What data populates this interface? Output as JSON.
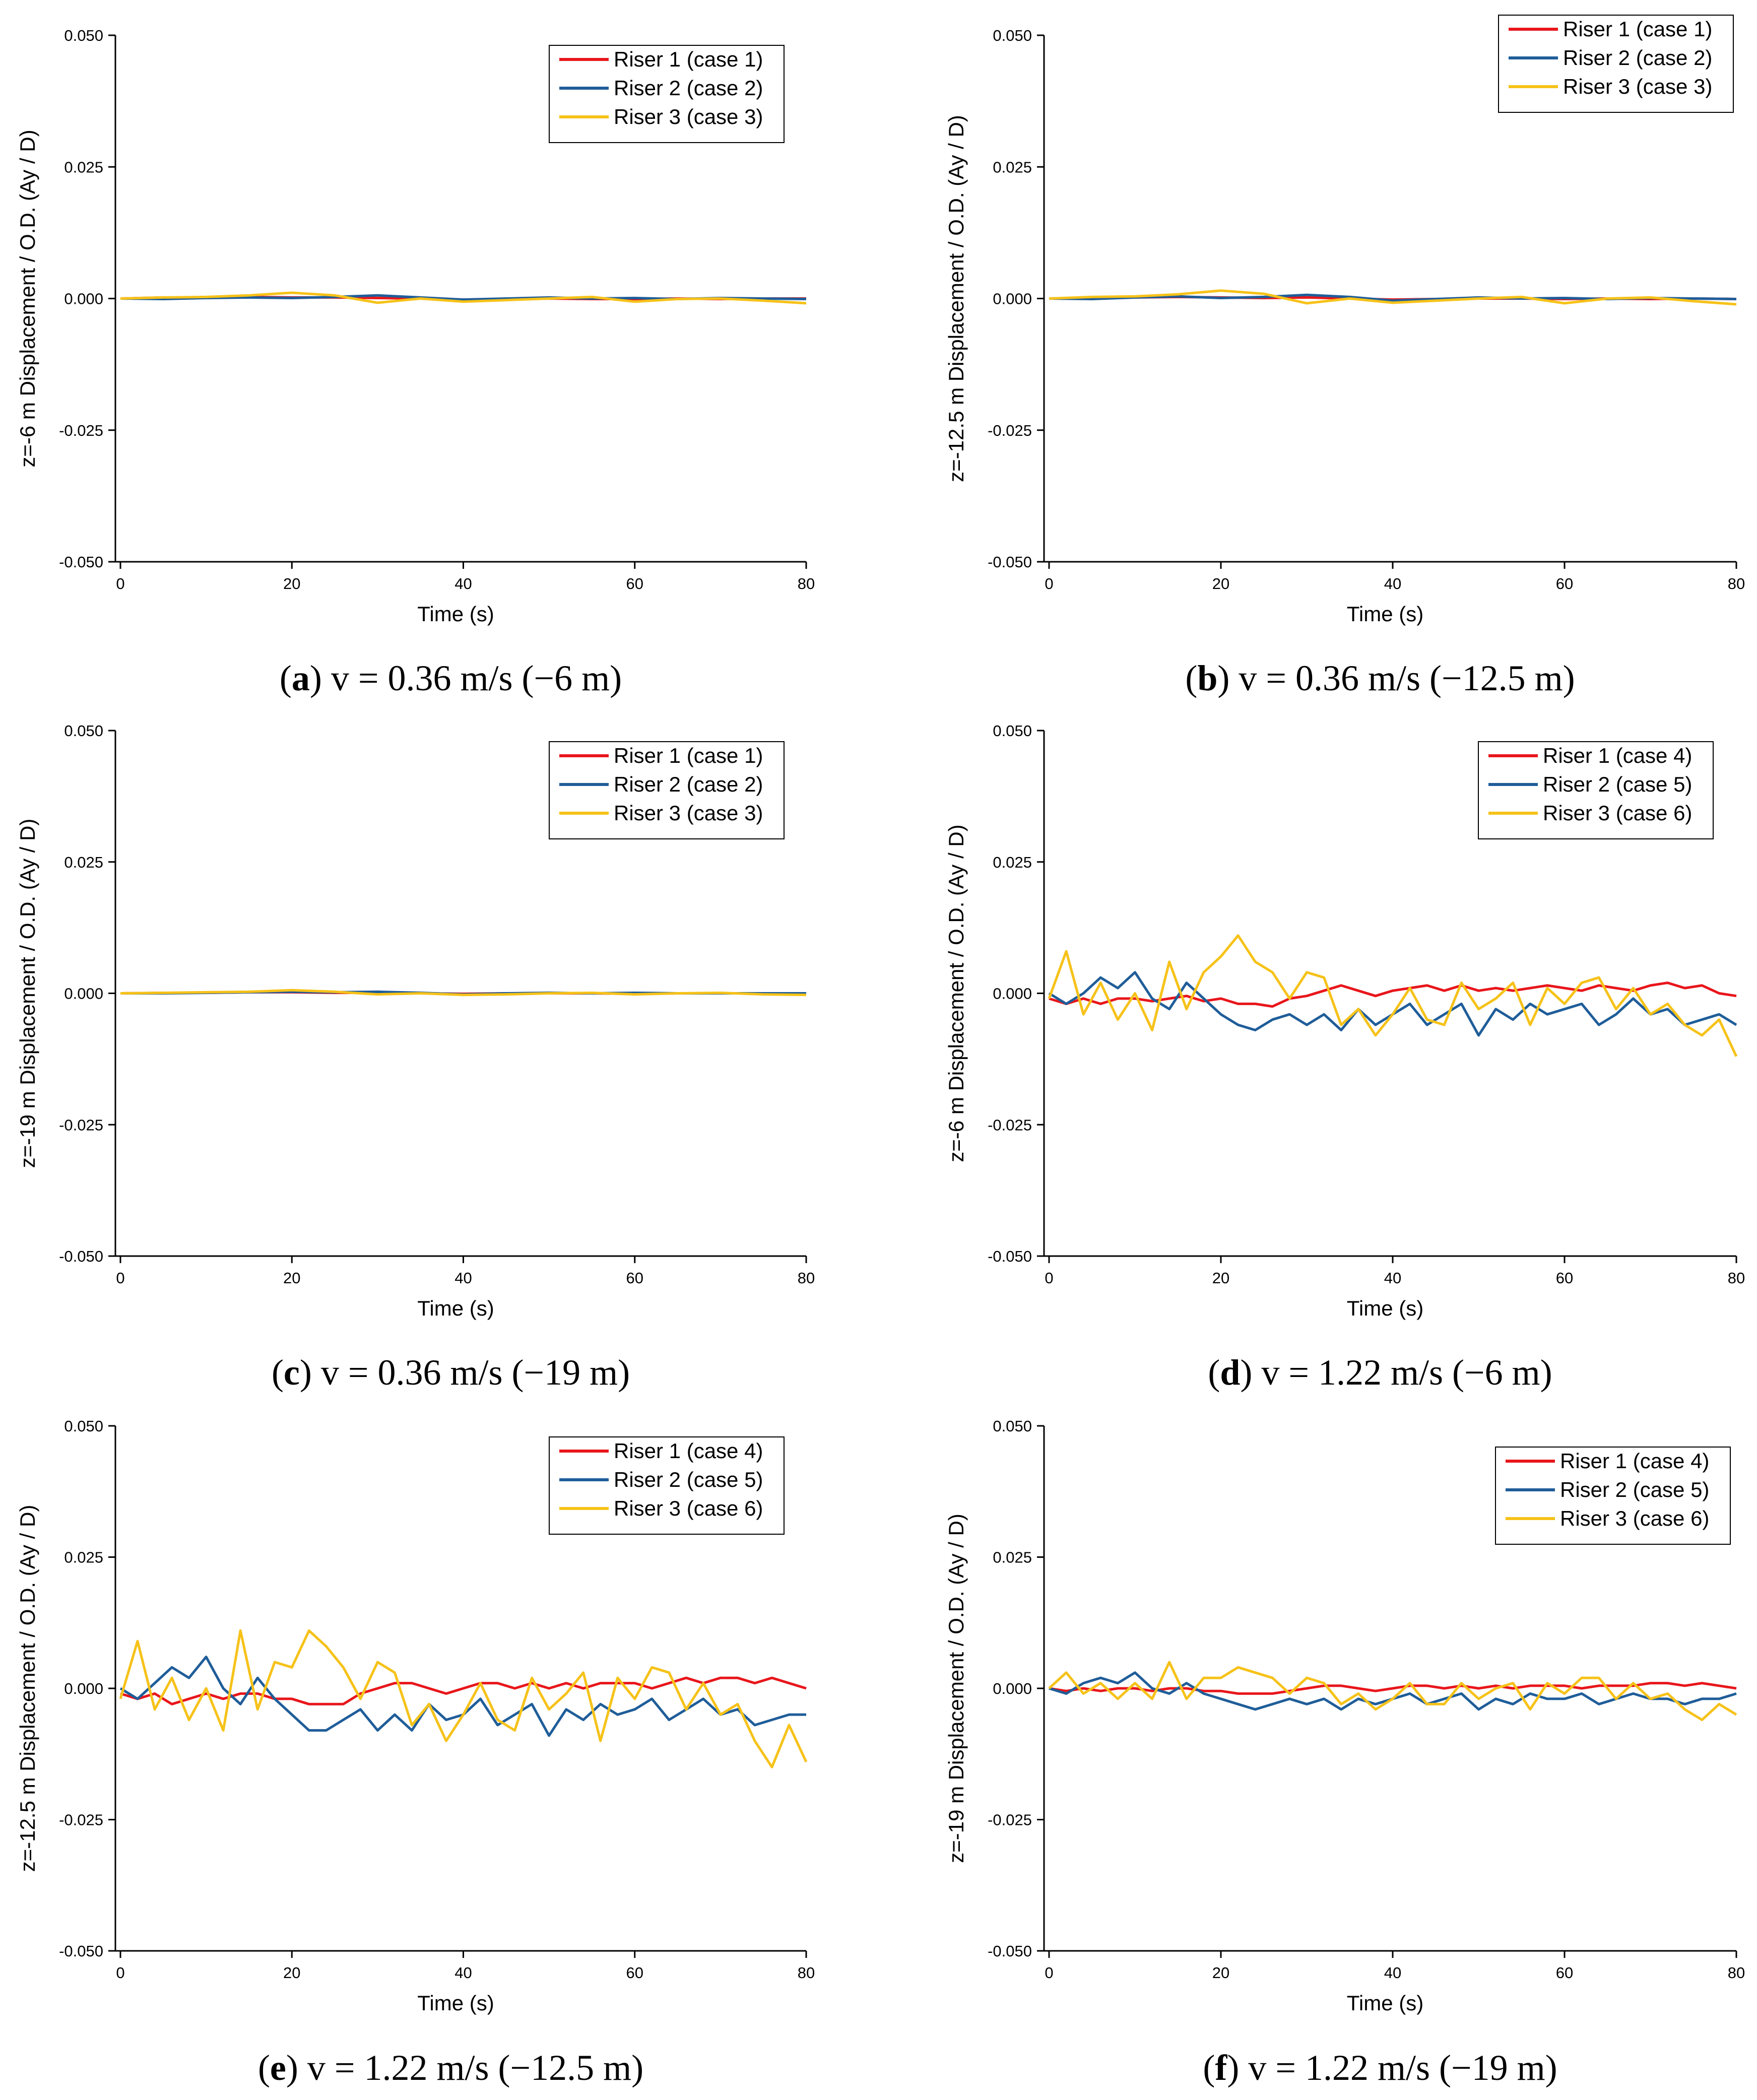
{
  "figure": {
    "colors": {
      "riser1": "#e8161b",
      "riser2": "#1f5d99",
      "riser3": "#f6c219"
    }
  },
  "chart_data": [
    {
      "type": "line",
      "id": "a",
      "caption": {
        "open": "(",
        "letter": "a",
        "rest": ") v = 0.36 m/s (−6 m)"
      },
      "xlabel": "Time (s)",
      "ylabel": "z=-6 m Displacement / O.D. (Ay / D)",
      "xlim": [
        0,
        80
      ],
      "ylim": [
        -0.05,
        0.05
      ],
      "xticks": [
        "0",
        "20",
        "40",
        "60",
        "80"
      ],
      "yticks": [
        "0.050",
        "0.025",
        "0.000",
        "-0.025",
        "-0.050"
      ],
      "legend_position": "top-right",
      "x": [
        0,
        5,
        10,
        15,
        20,
        25,
        30,
        35,
        40,
        45,
        50,
        55,
        60,
        65,
        70,
        75,
        80
      ],
      "series": [
        {
          "name": "Riser 1 (case 1)",
          "color_key": "riser1",
          "values": [
            0,
            0.0002,
            0.0001,
            0.0003,
            0.0002,
            0.0002,
            0.0001,
            0,
            -0.0002,
            -0.0001,
            0,
            -0.0001,
            -0.0001,
            0,
            -0.0001,
            0,
            0
          ]
        },
        {
          "name": "Riser 2 (case 2)",
          "color_key": "riser2",
          "values": [
            0,
            -0.0001,
            0.0001,
            0.0002,
            0.0001,
            0.0003,
            0.0006,
            0.0002,
            -0.0002,
            0,
            0.0002,
            0,
            0.0001,
            -0.0001,
            0.0001,
            0,
            -0.0001
          ]
        },
        {
          "name": "Riser 3 (case 3)",
          "color_key": "riser3",
          "values": [
            0,
            0.0002,
            0.0003,
            0.0006,
            0.0011,
            0.0006,
            -0.0008,
            0,
            -0.0006,
            -0.0003,
            0,
            0.0003,
            -0.0006,
            -0.0001,
            0,
            -0.0004,
            -0.0009
          ]
        }
      ]
    },
    {
      "type": "line",
      "id": "b",
      "caption": {
        "open": "(",
        "letter": "b",
        "rest": ") v = 0.36 m/s (−12.5 m)"
      },
      "xlabel": "Time (s)",
      "ylabel": "z=-12.5 m Displacement / O.D. (Ay / D)",
      "xlim": [
        0,
        80
      ],
      "ylim": [
        -0.05,
        0.05
      ],
      "xticks": [
        "0",
        "20",
        "40",
        "60",
        "80"
      ],
      "yticks": [
        "0.050",
        "0.025",
        "0.000",
        "-0.025",
        "-0.050"
      ],
      "legend_position": "top-right",
      "x": [
        0,
        5,
        10,
        15,
        20,
        25,
        30,
        35,
        40,
        45,
        50,
        55,
        60,
        65,
        70,
        75,
        80
      ],
      "series": [
        {
          "name": "Riser 1 (case 1)",
          "color_key": "riser1",
          "values": [
            0,
            0.0001,
            0.0002,
            0.0003,
            0.0002,
            0.0001,
            0.0002,
            0,
            -0.0002,
            -0.0001,
            0,
            0,
            -0.0001,
            0,
            -0.0001,
            0,
            -0.0001
          ]
        },
        {
          "name": "Riser 2 (case 2)",
          "color_key": "riser2",
          "values": [
            0,
            -0.0001,
            0.0002,
            0.0004,
            0.0001,
            0.0003,
            0.0007,
            0.0003,
            -0.0004,
            -0.0001,
            0.0002,
            0,
            0.0001,
            -0.0001,
            0.0001,
            0,
            -0.0001
          ]
        },
        {
          "name": "Riser 3 (case 3)",
          "color_key": "riser3",
          "values": [
            0,
            0.0003,
            0.0004,
            0.0008,
            0.0015,
            0.0009,
            -0.0009,
            0,
            -0.0008,
            -0.0004,
            0,
            0.0003,
            -0.0009,
            0,
            0.0002,
            -0.0005,
            -0.0011
          ]
        }
      ]
    },
    {
      "type": "line",
      "id": "c",
      "caption": {
        "open": "(",
        "letter": "c",
        "rest": ") v = 0.36 m/s (−19 m)"
      },
      "xlabel": "Time (s)",
      "ylabel": "z=-19 m Displacement / O.D. (Ay / D)",
      "xlim": [
        0,
        80
      ],
      "ylim": [
        -0.05,
        0.05
      ],
      "xticks": [
        "0",
        "20",
        "40",
        "60",
        "80"
      ],
      "yticks": [
        "0.050",
        "0.025",
        "0.000",
        "-0.025",
        "-0.050"
      ],
      "legend_position": "top-right",
      "x": [
        0,
        5,
        10,
        15,
        20,
        25,
        30,
        35,
        40,
        45,
        50,
        55,
        60,
        65,
        70,
        75,
        80
      ],
      "series": [
        {
          "name": "Riser 1 (case 1)",
          "color_key": "riser1",
          "values": [
            0,
            0.0001,
            0.0001,
            0.0002,
            0.0002,
            0.0001,
            0.0001,
            0,
            -0.0001,
            0,
            0,
            0,
            -0.0001,
            0,
            0,
            0,
            0
          ]
        },
        {
          "name": "Riser 2 (case 2)",
          "color_key": "riser2",
          "values": [
            0,
            0,
            0.0001,
            0.0002,
            0.0003,
            0.0002,
            0.0003,
            0.0001,
            -0.0002,
            0,
            0.0001,
            0,
            0.0001,
            0,
            0,
            0,
            0
          ]
        },
        {
          "name": "Riser 3 (case 3)",
          "color_key": "riser3",
          "values": [
            0,
            0.0001,
            0.0002,
            0.0003,
            0.0006,
            0.0003,
            -0.0002,
            0,
            -0.0003,
            -0.0002,
            0,
            0.0001,
            -0.0002,
            0,
            0.0001,
            -0.0002,
            -0.0003
          ]
        }
      ]
    },
    {
      "type": "line",
      "id": "d",
      "caption": {
        "open": "(",
        "letter": "d",
        "rest": ") v = 1.22 m/s (−6 m)"
      },
      "xlabel": "Time (s)",
      "ylabel": "z=-6 m Displacement / O.D. (Ay / D)",
      "xlim": [
        0,
        80
      ],
      "ylim": [
        -0.05,
        0.05
      ],
      "xticks": [
        "0",
        "20",
        "40",
        "60",
        "80"
      ],
      "yticks": [
        "0.050",
        "0.025",
        "0.000",
        "-0.025",
        "-0.050"
      ],
      "legend_position": "top-right",
      "x": [
        0,
        2,
        4,
        6,
        8,
        10,
        12,
        14,
        16,
        18,
        20,
        22,
        24,
        26,
        28,
        30,
        32,
        34,
        36,
        38,
        40,
        42,
        44,
        46,
        48,
        50,
        52,
        54,
        56,
        58,
        60,
        62,
        64,
        66,
        68,
        70,
        72,
        74,
        76,
        78,
        80
      ],
      "series": [
        {
          "name": "Riser 1 (case 4)",
          "color_key": "riser1",
          "values": [
            -0.001,
            -0.002,
            -0.001,
            -0.002,
            -0.001,
            -0.001,
            -0.0015,
            -0.001,
            -0.0005,
            -0.0015,
            -0.001,
            -0.002,
            -0.002,
            -0.0025,
            -0.001,
            -0.0005,
            0.0005,
            0.0015,
            0.0005,
            -0.0005,
            0.0005,
            0.001,
            0.0015,
            0.0005,
            0.0015,
            0.0005,
            0.001,
            0.0005,
            0.001,
            0.0015,
            0.001,
            0.0005,
            0.0015,
            0.001,
            0.0005,
            0.0015,
            0.002,
            0.001,
            0.0015,
            0,
            -0.0005
          ]
        },
        {
          "name": "Riser 2 (case 5)",
          "color_key": "riser2",
          "values": [
            0,
            -0.002,
            0,
            0.003,
            0.001,
            0.004,
            -0.001,
            -0.003,
            0.002,
            -0.001,
            -0.004,
            -0.006,
            -0.007,
            -0.005,
            -0.004,
            -0.006,
            -0.004,
            -0.007,
            -0.003,
            -0.006,
            -0.004,
            -0.002,
            -0.006,
            -0.004,
            -0.002,
            -0.008,
            -0.003,
            -0.005,
            -0.002,
            -0.004,
            -0.003,
            -0.002,
            -0.006,
            -0.004,
            -0.001,
            -0.004,
            -0.003,
            -0.006,
            -0.005,
            -0.004,
            -0.006
          ]
        },
        {
          "name": "Riser 3 (case 6)",
          "color_key": "riser3",
          "values": [
            -0.001,
            0.008,
            -0.004,
            0.002,
            -0.005,
            0.0,
            -0.007,
            0.006,
            -0.003,
            0.004,
            0.007,
            0.011,
            0.006,
            0.004,
            -0.001,
            0.004,
            0.003,
            -0.006,
            -0.003,
            -0.008,
            -0.004,
            0.001,
            -0.005,
            -0.006,
            0.002,
            -0.003,
            -0.001,
            0.002,
            -0.006,
            0.001,
            -0.002,
            0.002,
            0.003,
            -0.003,
            0.001,
            -0.004,
            -0.002,
            -0.006,
            -0.008,
            -0.005,
            -0.012
          ]
        }
      ]
    },
    {
      "type": "line",
      "id": "e",
      "caption": {
        "open": "(",
        "letter": "e",
        "rest": ") v = 1.22 m/s (−12.5 m)"
      },
      "xlabel": "Time (s)",
      "ylabel": "z=-12.5 m Displacement / O.D. (Ay / D)",
      "xlim": [
        0,
        80
      ],
      "ylim": [
        -0.05,
        0.05
      ],
      "xticks": [
        "0",
        "20",
        "40",
        "60",
        "80"
      ],
      "yticks": [
        "0.050",
        "0.025",
        "0.000",
        "-0.025",
        "-0.050"
      ],
      "legend_position": "top-right",
      "x": [
        0,
        2,
        4,
        6,
        8,
        10,
        12,
        14,
        16,
        18,
        20,
        22,
        24,
        26,
        28,
        30,
        32,
        34,
        36,
        38,
        40,
        42,
        44,
        46,
        48,
        50,
        52,
        54,
        56,
        58,
        60,
        62,
        64,
        66,
        68,
        70,
        72,
        74,
        76,
        78,
        80
      ],
      "series": [
        {
          "name": "Riser 1 (case 4)",
          "color_key": "riser1",
          "values": [
            -0.001,
            -0.002,
            -0.001,
            -0.003,
            -0.002,
            -0.001,
            -0.002,
            -0.001,
            -0.001,
            -0.002,
            -0.002,
            -0.003,
            -0.003,
            -0.003,
            -0.001,
            0,
            0.001,
            0.001,
            0,
            -0.001,
            0,
            0.001,
            0.001,
            0,
            0.001,
            0,
            0.001,
            0,
            0.001,
            0.001,
            0.001,
            0,
            0.001,
            0.002,
            0.001,
            0.002,
            0.002,
            0.001,
            0.002,
            0.001,
            0
          ]
        },
        {
          "name": "Riser 2 (case 5)",
          "color_key": "riser2",
          "values": [
            0,
            -0.002,
            0.001,
            0.004,
            0.002,
            0.006,
            0,
            -0.003,
            0.002,
            -0.002,
            -0.005,
            -0.008,
            -0.008,
            -0.006,
            -0.004,
            -0.008,
            -0.005,
            -0.008,
            -0.003,
            -0.006,
            -0.005,
            -0.002,
            -0.007,
            -0.005,
            -0.003,
            -0.009,
            -0.004,
            -0.006,
            -0.003,
            -0.005,
            -0.004,
            -0.002,
            -0.006,
            -0.004,
            -0.002,
            -0.005,
            -0.004,
            -0.007,
            -0.006,
            -0.005,
            -0.005
          ]
        },
        {
          "name": "Riser 3 (case 6)",
          "color_key": "riser3",
          "values": [
            -0.002,
            0.009,
            -0.004,
            0.002,
            -0.006,
            0.0,
            -0.008,
            0.011,
            -0.004,
            0.005,
            0.004,
            0.011,
            0.008,
            0.004,
            -0.002,
            0.005,
            0.003,
            -0.007,
            -0.003,
            -0.01,
            -0.005,
            0.001,
            -0.006,
            -0.008,
            0.002,
            -0.004,
            -0.001,
            0.003,
            -0.01,
            0.002,
            -0.002,
            0.004,
            0.003,
            -0.004,
            0.001,
            -0.005,
            -0.003,
            -0.01,
            -0.015,
            -0.007,
            -0.014
          ]
        }
      ]
    },
    {
      "type": "line",
      "id": "f",
      "caption": {
        "open": "(",
        "letter": "f",
        "rest": ") v = 1.22 m/s (−19 m)"
      },
      "xlabel": "Time (s)",
      "ylabel": "z=-19 m Displacement / O.D. (Ay / D)",
      "xlim": [
        0,
        80
      ],
      "ylim": [
        -0.05,
        0.05
      ],
      "xticks": [
        "0",
        "20",
        "40",
        "60",
        "80"
      ],
      "yticks": [
        "0.050",
        "0.025",
        "0.000",
        "-0.025",
        "-0.050"
      ],
      "legend_position": "top-right",
      "x": [
        0,
        2,
        4,
        6,
        8,
        10,
        12,
        14,
        16,
        18,
        20,
        22,
        24,
        26,
        28,
        30,
        32,
        34,
        36,
        38,
        40,
        42,
        44,
        46,
        48,
        50,
        52,
        54,
        56,
        58,
        60,
        62,
        64,
        66,
        68,
        70,
        72,
        74,
        76,
        78,
        80
      ],
      "series": [
        {
          "name": "Riser 1 (case 4)",
          "color_key": "riser1",
          "values": [
            0,
            -0.0005,
            0,
            -0.0005,
            0,
            0,
            -0.0005,
            0,
            0,
            -0.0005,
            -0.0005,
            -0.001,
            -0.001,
            -0.001,
            -0.0005,
            0,
            0.0005,
            0.0005,
            0,
            -0.0005,
            0,
            0.0005,
            0.0005,
            0,
            0.0005,
            0,
            0.0005,
            0,
            0.0005,
            0.0005,
            0.0005,
            0,
            0.0005,
            0.0005,
            0.0005,
            0.001,
            0.001,
            0.0005,
            0.001,
            0.0005,
            0
          ]
        },
        {
          "name": "Riser 2 (case 5)",
          "color_key": "riser2",
          "values": [
            0,
            -0.001,
            0.001,
            0.002,
            0.001,
            0.003,
            0,
            -0.001,
            0.001,
            -0.001,
            -0.002,
            -0.003,
            -0.004,
            -0.003,
            -0.002,
            -0.003,
            -0.002,
            -0.004,
            -0.002,
            -0.003,
            -0.002,
            -0.001,
            -0.003,
            -0.002,
            -0.001,
            -0.004,
            -0.002,
            -0.003,
            -0.001,
            -0.002,
            -0.002,
            -0.001,
            -0.003,
            -0.002,
            -0.001,
            -0.002,
            -0.002,
            -0.003,
            -0.002,
            -0.002,
            -0.001
          ]
        },
        {
          "name": "Riser 3 (case 6)",
          "color_key": "riser3",
          "values": [
            0,
            0.003,
            -0.001,
            0.001,
            -0.002,
            0.001,
            -0.002,
            0.005,
            -0.002,
            0.002,
            0.002,
            0.004,
            0.003,
            0.002,
            -0.001,
            0.002,
            0.001,
            -0.003,
            -0.001,
            -0.004,
            -0.002,
            0.001,
            -0.003,
            -0.003,
            0.001,
            -0.002,
            0,
            0.001,
            -0.004,
            0.001,
            -0.001,
            0.002,
            0.002,
            -0.002,
            0.001,
            -0.002,
            -0.001,
            -0.004,
            -0.006,
            -0.003,
            -0.005
          ]
        }
      ]
    }
  ]
}
